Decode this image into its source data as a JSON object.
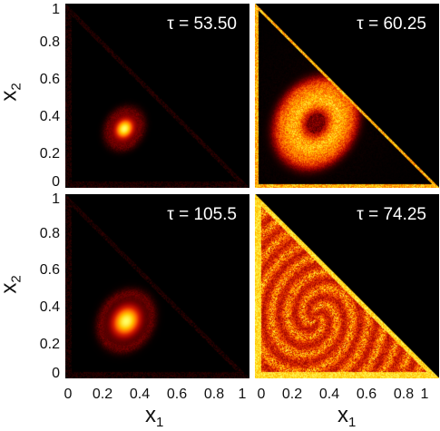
{
  "chart_data": [
    {
      "type": "heatmap",
      "annotation": "τ = 53.50",
      "xlim": [
        0,
        1
      ],
      "ylim": [
        0,
        1
      ],
      "x_ticks": [
        "0",
        "0.2",
        "0.4",
        "0.6",
        "0.8",
        "1"
      ],
      "y_ticks": [
        "0",
        "0.2",
        "0.4",
        "0.6",
        "0.8",
        "1"
      ],
      "pattern": "spot",
      "center": [
        0.32,
        0.32
      ],
      "spread": 0.06,
      "max_intensity": 1.0
    },
    {
      "type": "heatmap",
      "annotation": "τ = 60.25",
      "xlim": [
        0,
        1
      ],
      "ylim": [
        0,
        1
      ],
      "x_ticks": [
        "0",
        "0.2",
        "0.4",
        "0.6",
        "0.8",
        "1"
      ],
      "y_ticks": [
        "0",
        "0.2",
        "0.4",
        "0.6",
        "0.8",
        "1"
      ],
      "pattern": "ring",
      "center": [
        0.33,
        0.35
      ],
      "spread": 0.22,
      "max_intensity": 1.0
    },
    {
      "type": "heatmap",
      "annotation": "τ = 105.5",
      "xlim": [
        0,
        1
      ],
      "ylim": [
        0,
        1
      ],
      "x_ticks": [
        "0",
        "0.2",
        "0.4",
        "0.6",
        "0.8",
        "1"
      ],
      "y_ticks": [
        "0",
        "0.2",
        "0.4",
        "0.6",
        "0.8",
        "1"
      ],
      "pattern": "spot",
      "center": [
        0.33,
        0.31
      ],
      "spread": 0.09,
      "max_intensity": 1.0
    },
    {
      "type": "heatmap",
      "annotation": "τ = 74.25",
      "xlim": [
        0,
        1
      ],
      "ylim": [
        0,
        1
      ],
      "x_ticks": [
        "0",
        "0.2",
        "0.4",
        "0.6",
        "0.8",
        "1"
      ],
      "y_ticks": [
        "0",
        "0.2",
        "0.4",
        "0.6",
        "0.8",
        "1"
      ],
      "pattern": "filled-triangle",
      "center": [
        0.33,
        0.33
      ],
      "spread": 0.3,
      "max_intensity": 1.0
    }
  ],
  "x_label": "x",
  "x_label_sub": "1",
  "y_label": "x",
  "y_label_sub": "2",
  "colormap": [
    "#000000",
    "#3a0000",
    "#8b0000",
    "#d01a00",
    "#ff6a00",
    "#ffc400",
    "#ffff66"
  ]
}
